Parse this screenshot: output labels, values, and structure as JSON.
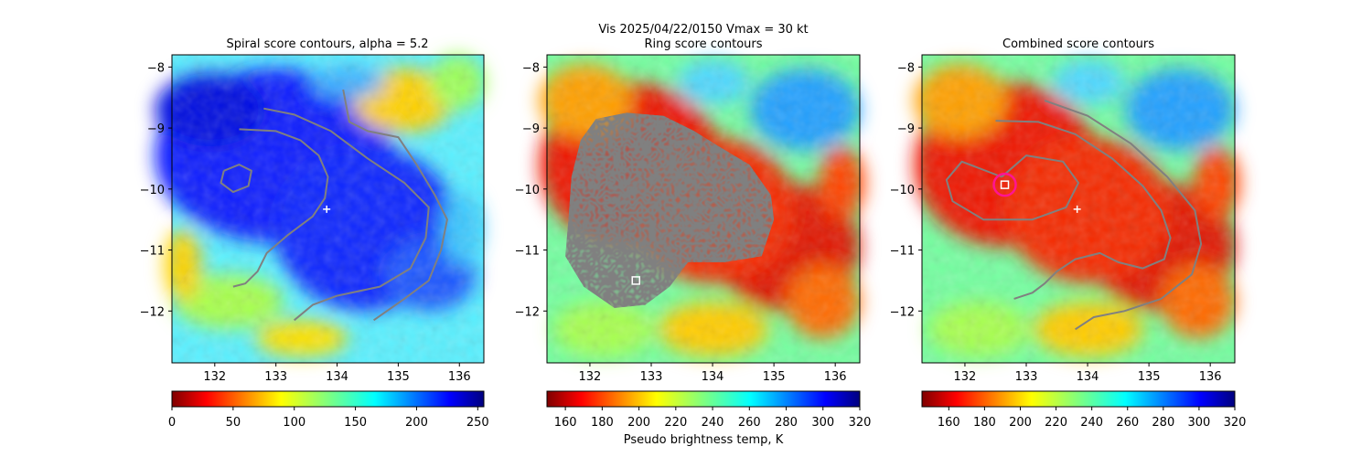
{
  "suptitle": "Vis  2025/04/22/0150    Vmax = 30 kt",
  "colorbar_label": "Pseudo brightness temp, K",
  "chart_data": [
    {
      "type": "heatmap",
      "title": "Spiral score contours, alpha =  5.2",
      "xlim": [
        131.3,
        136.4
      ],
      "ylim": [
        -12.85,
        -7.8
      ],
      "xticks": [
        "132",
        "133",
        "134",
        "135",
        "136"
      ],
      "yticks": [
        "−8",
        "−9",
        "−10",
        "−11",
        "−12"
      ],
      "colormap": "jet",
      "colorbar_range": [
        0,
        255
      ],
      "colorbar_ticks": [
        "0",
        "50",
        "100",
        "150",
        "200",
        "250"
      ],
      "marker_plus": [
        133.83,
        -10.33
      ],
      "contours_gray": [
        [
          [
            132.4,
            -9.02
          ],
          [
            133.0,
            -9.05
          ],
          [
            133.4,
            -9.2
          ],
          [
            133.7,
            -9.45
          ],
          [
            133.85,
            -9.8
          ],
          [
            133.8,
            -10.15
          ],
          [
            133.6,
            -10.45
          ],
          [
            133.2,
            -10.75
          ],
          [
            132.85,
            -11.05
          ],
          [
            132.7,
            -11.35
          ],
          [
            132.5,
            -11.55
          ],
          [
            132.3,
            -11.6
          ]
        ],
        [
          [
            132.15,
            -9.7
          ],
          [
            132.4,
            -9.6
          ],
          [
            132.6,
            -9.7
          ],
          [
            132.55,
            -9.95
          ],
          [
            132.3,
            -10.05
          ],
          [
            132.1,
            -9.9
          ],
          [
            132.15,
            -9.7
          ]
        ],
        [
          [
            132.8,
            -8.68
          ],
          [
            133.3,
            -8.78
          ],
          [
            133.9,
            -9.05
          ],
          [
            134.5,
            -9.5
          ],
          [
            135.1,
            -9.9
          ],
          [
            135.5,
            -10.3
          ],
          [
            135.45,
            -10.8
          ],
          [
            135.2,
            -11.3
          ],
          [
            134.7,
            -11.6
          ],
          [
            134.0,
            -11.75
          ],
          [
            133.6,
            -11.9
          ],
          [
            133.3,
            -12.15
          ]
        ],
        [
          [
            134.1,
            -8.37
          ],
          [
            134.2,
            -8.9
          ],
          [
            134.5,
            -9.05
          ],
          [
            135.0,
            -9.15
          ],
          [
            135.3,
            -9.6
          ],
          [
            135.6,
            -10.1
          ],
          [
            135.8,
            -10.5
          ],
          [
            135.7,
            -11.0
          ],
          [
            135.5,
            -11.5
          ],
          [
            135.1,
            -11.8
          ],
          [
            134.6,
            -12.15
          ]
        ]
      ]
    },
    {
      "type": "heatmap",
      "title": "Ring score contours",
      "xlim": [
        131.3,
        136.4
      ],
      "ylim": [
        -12.85,
        -7.8
      ],
      "xticks": [
        "132",
        "133",
        "134",
        "135",
        "136"
      ],
      "yticks": [
        "−8",
        "−9",
        "−10",
        "−11",
        "−12"
      ],
      "colormap": "jet",
      "colorbar_range": [
        150,
        320
      ],
      "colorbar_ticks": [
        "160",
        "180",
        "200",
        "220",
        "240",
        "260",
        "280",
        "300",
        "320"
      ],
      "marker_square": [
        132.75,
        -11.5
      ],
      "region_gray": [
        [
          132.1,
          -8.85
        ],
        [
          132.6,
          -8.75
        ],
        [
          133.2,
          -8.8
        ],
        [
          133.7,
          -9.05
        ],
        [
          134.1,
          -9.3
        ],
        [
          134.6,
          -9.6
        ],
        [
          134.95,
          -10.1
        ],
        [
          135.0,
          -10.5
        ],
        [
          134.8,
          -11.1
        ],
        [
          134.2,
          -11.2
        ],
        [
          133.6,
          -11.2
        ],
        [
          133.3,
          -11.6
        ],
        [
          132.9,
          -11.9
        ],
        [
          132.4,
          -11.95
        ],
        [
          131.9,
          -11.6
        ],
        [
          131.6,
          -11.1
        ],
        [
          131.65,
          -10.5
        ],
        [
          131.7,
          -9.8
        ],
        [
          131.85,
          -9.2
        ]
      ]
    },
    {
      "type": "heatmap",
      "title": "Combined score contours",
      "xlim": [
        131.3,
        136.4
      ],
      "ylim": [
        -12.85,
        -7.8
      ],
      "xticks": [
        "132",
        "133",
        "134",
        "135",
        "136"
      ],
      "yticks": [
        "−8",
        "−9",
        "−10",
        "−11",
        "−12"
      ],
      "colormap": "jet",
      "colorbar_range": [
        145,
        320
      ],
      "colorbar_ticks": [
        "160",
        "180",
        "200",
        "220",
        "240",
        "260",
        "280",
        "300",
        "320"
      ],
      "marker_plus": [
        133.83,
        -10.33
      ],
      "marker_square": [
        132.65,
        -9.93
      ],
      "marker_circle": [
        132.65,
        -9.93
      ],
      "contours_gray": [
        [
          [
            132.6,
            -9.8
          ],
          [
            133.0,
            -9.45
          ],
          [
            133.6,
            -9.55
          ],
          [
            133.85,
            -9.9
          ],
          [
            133.65,
            -10.3
          ],
          [
            133.1,
            -10.5
          ],
          [
            132.3,
            -10.5
          ],
          [
            131.8,
            -10.2
          ],
          [
            131.7,
            -9.85
          ],
          [
            131.95,
            -9.55
          ],
          [
            132.6,
            -9.8
          ]
        ],
        [
          [
            132.5,
            -8.88
          ],
          [
            133.2,
            -8.9
          ],
          [
            133.8,
            -9.1
          ],
          [
            134.4,
            -9.5
          ],
          [
            134.9,
            -9.95
          ],
          [
            135.2,
            -10.35
          ],
          [
            135.35,
            -10.8
          ],
          [
            135.25,
            -11.15
          ],
          [
            134.9,
            -11.3
          ],
          [
            134.5,
            -11.2
          ],
          [
            134.2,
            -11.05
          ],
          [
            133.8,
            -11.15
          ],
          [
            133.5,
            -11.35
          ],
          [
            133.3,
            -11.55
          ],
          [
            133.1,
            -11.7
          ],
          [
            132.8,
            -11.8
          ]
        ],
        [
          [
            133.3,
            -8.55
          ],
          [
            134.0,
            -8.8
          ],
          [
            134.7,
            -9.25
          ],
          [
            135.3,
            -9.8
          ],
          [
            135.75,
            -10.35
          ],
          [
            135.85,
            -10.9
          ],
          [
            135.7,
            -11.4
          ],
          [
            135.2,
            -11.8
          ],
          [
            134.6,
            -12.0
          ],
          [
            134.1,
            -12.1
          ],
          [
            133.8,
            -12.3
          ]
        ]
      ]
    }
  ]
}
